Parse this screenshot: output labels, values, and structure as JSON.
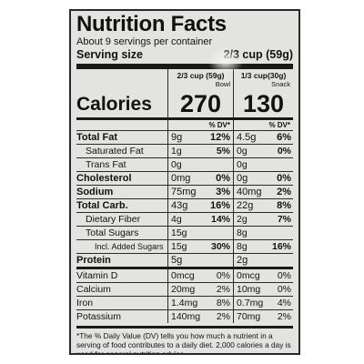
{
  "label": {
    "title": "Nutrition Facts",
    "servings": "About 9 servings per container",
    "serving_size_label": "Serving size",
    "serving_size_value": "2/3 cup (59g)",
    "col1": {
      "serving": "2/3 cup (59g)",
      "category": "Bowl",
      "calories": "270"
    },
    "col2": {
      "serving": "1/3 cup(30g)",
      "category": "Snack",
      "calories": "130"
    },
    "calories_label": "Calories",
    "dv_label": "% DV*",
    "nutrients": [
      {
        "name": "Total Fat",
        "a1": "9g",
        "p1": "12%",
        "a2": "4.5g",
        "p2": "6%"
      },
      {
        "name": "Saturated Fat",
        "a1": "1g",
        "p1": "5%",
        "a2": "0g",
        "p2": "0%"
      },
      {
        "name": "Trans Fat",
        "a1": "0g",
        "p1": "",
        "a2": "0g",
        "p2": ""
      },
      {
        "name": "Cholesterol",
        "a1": "0mg",
        "p1": "0%",
        "a2": "0g",
        "p2": "0%"
      },
      {
        "name": "Sodium",
        "a1": "75mg",
        "p1": "3%",
        "a2": "40mg",
        "p2": "2%"
      },
      {
        "name": "Total Carb.",
        "a1": "43g",
        "p1": "16%",
        "a2": "22g",
        "p2": "8%"
      },
      {
        "name": "Dietary Fiber",
        "a1": "4g",
        "p1": "14%",
        "a2": "2g",
        "p2": "7%"
      },
      {
        "name": "Total Sugars",
        "a1": "15g",
        "p1": "",
        "a2": "8g",
        "p2": ""
      },
      {
        "name": "Incl. Added Sugars",
        "a1": "15g",
        "p1": "30%",
        "a2": "8g",
        "p2": "16%"
      },
      {
        "name": "Protein",
        "a1": "5g",
        "p1": "",
        "a2": "2g",
        "p2": ""
      }
    ],
    "vitamins": [
      {
        "name": "Vitamin D",
        "a1": "0mcg",
        "p1": "0%",
        "a2": "0mcg",
        "p2": "0%"
      },
      {
        "name": "Calcium",
        "a1": "20mg",
        "p1": "2%",
        "a2": "10mg",
        "p2": "0%"
      },
      {
        "name": "Iron",
        "a1": "1.4mg",
        "p1": "8%",
        "a2": "0.7mg",
        "p2": "4%"
      },
      {
        "name": "Potassium",
        "a1": "140mg",
        "p1": "2%",
        "a2": "70mg",
        "p2": "2%"
      }
    ],
    "footnote": "*The % Daily Value (DV) tells you how much a nutrient in a serving of food contributes to a daily diet. 2,000 calories a day is used for general nutrition advice."
  }
}
